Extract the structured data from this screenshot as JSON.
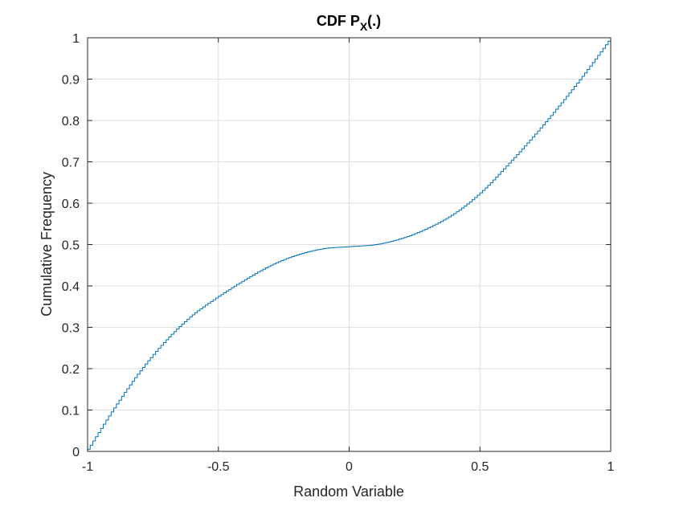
{
  "chart_data": {
    "type": "line",
    "title": "CDF P",
    "title_subscript": "X",
    "title_suffix": "(.)",
    "xlabel": "Random Variable",
    "ylabel": "Cumulative Frequency",
    "xlim": [
      -1,
      1
    ],
    "ylim": [
      0,
      1
    ],
    "x_ticks": [
      -1,
      -0.5,
      0,
      0.5,
      1
    ],
    "x_tick_labels": [
      "-1",
      "-0.5",
      "0",
      "0.5",
      "1"
    ],
    "y_ticks": [
      0,
      0.1,
      0.2,
      0.3,
      0.4,
      0.5,
      0.6,
      0.7,
      0.8,
      0.9,
      1
    ],
    "y_tick_labels": [
      "0",
      "0.1",
      "0.2",
      "0.3",
      "0.4",
      "0.5",
      "0.6",
      "0.7",
      "0.8",
      "0.9",
      "1"
    ],
    "grid": true,
    "line_style": "stairs",
    "series": [
      {
        "color": "#0072bd",
        "x": [
          -1,
          -0.9,
          -0.8,
          -0.7,
          -0.6,
          -0.5,
          -0.4,
          -0.3,
          -0.2,
          -0.1,
          0,
          0.1,
          0.2,
          0.3,
          0.4,
          0.5,
          0.6,
          0.7,
          0.8,
          0.9,
          1
        ],
        "y": [
          0.005,
          0.105,
          0.195,
          0.27,
          0.33,
          0.375,
          0.415,
          0.45,
          0.475,
          0.49,
          0.495,
          0.5,
          0.515,
          0.54,
          0.575,
          0.625,
          0.69,
          0.76,
          0.835,
          0.915,
          1.0
        ]
      }
    ]
  }
}
